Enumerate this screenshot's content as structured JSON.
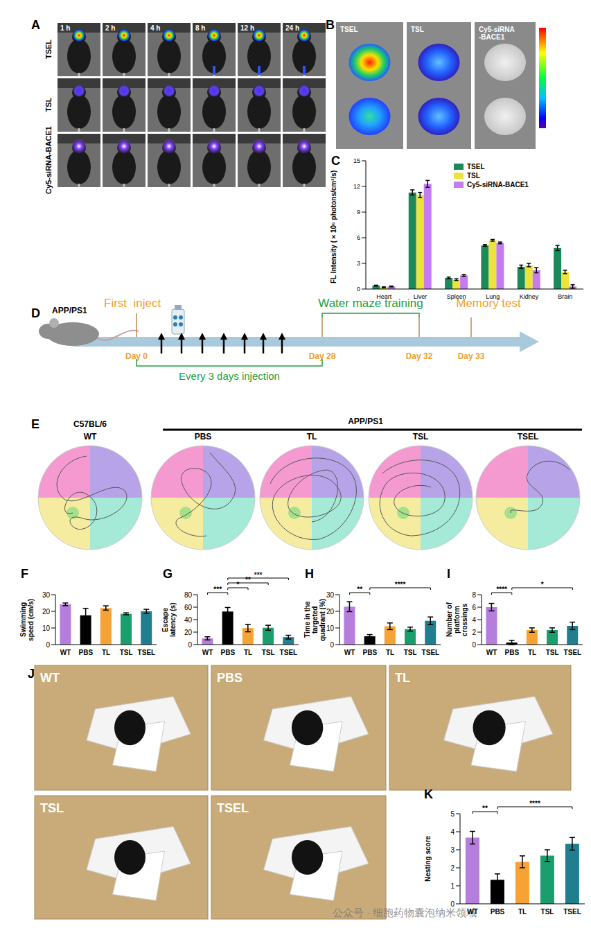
{
  "panels": {
    "A": {
      "title": "A",
      "rows": [
        "TSEL",
        "TSL",
        "Cy5-siRNA-BACE1"
      ],
      "times": [
        "1 h",
        "2 h",
        "4 h",
        "8 h",
        "12 h",
        "24 h"
      ]
    },
    "B": {
      "title": "B",
      "labels": [
        [
          "TSEL"
        ],
        [
          "TSL"
        ],
        [
          "Cy5-siRNA",
          "-BACE1"
        ]
      ]
    },
    "D": {
      "title": "D",
      "model": "APP/PS1",
      "first_inject": "First  inject",
      "training": "Water maze training",
      "test": "Memory test",
      "days": [
        "Day 0",
        "Day 28",
        "Day 32",
        "Day 33"
      ],
      "interval": "Every 3 days injection"
    },
    "E": {
      "title": "E",
      "control_strain": "C57BL/6",
      "model": "APP/PS1",
      "groups": [
        "WT",
        "PBS",
        "TL",
        "TSL",
        "TSEL"
      ]
    },
    "J": {
      "title": "J",
      "groups": [
        "WT",
        "PBS",
        "TL",
        "TSL",
        "TSEL"
      ]
    },
    "watermark": "公众号 · 细胞药物囊泡纳米领域"
  },
  "chart_data": [
    {
      "type": "bar",
      "title": "C",
      "ylabel": "FL Intensity (×10⁶ photons/cm²/s)",
      "categories": [
        "Heart",
        "Liver",
        "Spleen",
        "Lung",
        "Kidney",
        "Brain"
      ],
      "series": [
        {
          "name": "TSEL",
          "color": "#1b8a5a",
          "values": [
            0.4,
            11.3,
            1.3,
            5.1,
            2.6,
            4.8
          ],
          "errors": [
            0.05,
            0.3,
            0.1,
            0.1,
            0.2,
            0.3
          ]
        },
        {
          "name": "TSL",
          "color": "#ece43c",
          "values": [
            0.2,
            11.0,
            1.1,
            5.7,
            2.8,
            2.0
          ],
          "errors": [
            0.05,
            0.3,
            0.1,
            0.1,
            0.2,
            0.2
          ]
        },
        {
          "name": "Cy5-siRNA-BACE1",
          "color": "#c57cf0",
          "values": [
            0.3,
            12.3,
            1.6,
            5.4,
            2.2,
            0.3
          ],
          "errors": [
            0.05,
            0.4,
            0.1,
            0.1,
            0.3,
            0.2
          ]
        }
      ],
      "ylim": [
        0,
        15
      ],
      "yticks": [
        0,
        3,
        6,
        9,
        12,
        15
      ],
      "legend": "top-right"
    },
    {
      "type": "bar",
      "title": "F",
      "ylabel": "Swimming speed (cm/s)",
      "categories": [
        "WT",
        "PBS",
        "TL",
        "TSL",
        "TSEL"
      ],
      "values": [
        24.2,
        17.6,
        22.0,
        18.5,
        20.0
      ],
      "errors": [
        0.8,
        4.2,
        1.3,
        0.6,
        1.2
      ],
      "colors": [
        "#b57edc",
        "#000000",
        "#f7a234",
        "#1a9e6e",
        "#1f7f8f"
      ],
      "ylim": [
        0,
        30
      ],
      "yticks": [
        0,
        10,
        20,
        30
      ],
      "annotations": []
    },
    {
      "type": "bar",
      "title": "G",
      "ylabel": "Escape latency (s)",
      "categories": [
        "WT",
        "PBS",
        "TL",
        "TSL",
        "TSEL"
      ],
      "values": [
        10.0,
        53.0,
        26.5,
        27.0,
        12.0
      ],
      "errors": [
        2.5,
        6.5,
        6.0,
        4.0,
        3.0
      ],
      "colors": [
        "#b57edc",
        "#000000",
        "#f7a234",
        "#1a9e6e",
        "#1f7f8f"
      ],
      "ylim": [
        0,
        80
      ],
      "yticks": [
        0,
        20,
        40,
        60,
        80
      ],
      "annotations": [
        {
          "from": "WT",
          "to": "PBS",
          "label": "***"
        },
        {
          "from": "PBS",
          "to": "TL",
          "label": "*"
        },
        {
          "from": "PBS",
          "to": "TSL",
          "label": "**"
        },
        {
          "from": "PBS",
          "to": "TSEL",
          "label": "***"
        }
      ]
    },
    {
      "type": "bar",
      "title": "H",
      "ylabel": "Time in the targeted quadrant (%)",
      "categories": [
        "WT",
        "PBS",
        "TL",
        "TSL",
        "TSEL"
      ],
      "values": [
        22.8,
        5.0,
        11.0,
        9.3,
        14.3
      ],
      "errors": [
        3.0,
        1.0,
        2.0,
        1.2,
        2.3
      ],
      "colors": [
        "#b57edc",
        "#000000",
        "#f7a234",
        "#1a9e6e",
        "#1f7f8f"
      ],
      "ylim": [
        0,
        30
      ],
      "yticks": [
        0,
        10,
        20,
        30
      ],
      "annotations": [
        {
          "from": "WT",
          "to": "PBS",
          "label": "**"
        },
        {
          "from": "PBS",
          "to": "TSEL",
          "label": "****"
        }
      ]
    },
    {
      "type": "bar",
      "title": "I",
      "ylabel": "Number of platform crossings",
      "categories": [
        "WT",
        "PBS",
        "TL",
        "TSL",
        "TSEL"
      ],
      "values": [
        6.0,
        0.33,
        2.33,
        2.33,
        3.0
      ],
      "errors": [
        0.6,
        0.35,
        0.35,
        0.35,
        0.6
      ],
      "colors": [
        "#b57edc",
        "#000000",
        "#f7a234",
        "#1a9e6e",
        "#1f7f8f"
      ],
      "ylim": [
        0,
        8
      ],
      "yticks": [
        0,
        2,
        4,
        6,
        8
      ],
      "annotations": [
        {
          "from": "WT",
          "to": "PBS",
          "label": "****"
        },
        {
          "from": "PBS",
          "to": "TSEL",
          "label": "*"
        }
      ]
    },
    {
      "type": "bar",
      "title": "K",
      "ylabel": "Nesting score",
      "categories": [
        "WT",
        "PBS",
        "TL",
        "TSL",
        "TSEL"
      ],
      "values": [
        3.67,
        1.33,
        2.33,
        2.67,
        3.33
      ],
      "errors": [
        0.35,
        0.33,
        0.33,
        0.33,
        0.35
      ],
      "colors": [
        "#b57edc",
        "#000000",
        "#f7a234",
        "#1a9e6e",
        "#1f7f8f"
      ],
      "ylim": [
        0,
        5
      ],
      "yticks": [
        0,
        1,
        2,
        3,
        4,
        5
      ],
      "annotations": [
        {
          "from": "WT",
          "to": "PBS",
          "label": "**"
        },
        {
          "from": "PBS",
          "to": "TSEL",
          "label": "****"
        }
      ]
    }
  ]
}
